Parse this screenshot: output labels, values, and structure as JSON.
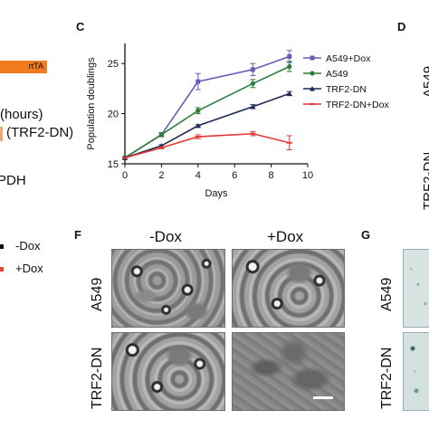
{
  "left_fragment": {
    "rtta_label": "rtTA",
    "hours_text": "(hours)",
    "trf2dn_text": "(TRF2-DN)",
    "gapdh_text": "PDH",
    "legend_dox_minus": "-Dox",
    "legend_dox_plus": "+Dox",
    "colors": {
      "rtta_box": "#f07a1e",
      "plus_dox_marker": "#e8462e"
    }
  },
  "panels": {
    "c": "C",
    "d": "D",
    "f": "F",
    "g": "G"
  },
  "panel_d_fragment": {
    "text": "A549",
    "text2": "TRF2-DN"
  },
  "panel_f": {
    "col_minus": "-Dox",
    "col_plus": "+Dox",
    "row_a549": "A549",
    "row_trf2dn": "TRF2-DN"
  },
  "panel_g": {
    "row_a549": "A549",
    "row_trf2dn": "TRF2-DN"
  },
  "chart_data": {
    "type": "line",
    "title": "",
    "xlabel": "Days",
    "ylabel": "Population doublings",
    "xlim": [
      0,
      10
    ],
    "ylim": [
      15,
      27
    ],
    "xticks": [
      0,
      2,
      4,
      6,
      8,
      10
    ],
    "yticks": [
      15,
      20,
      25
    ],
    "legend_position": "top-right",
    "series": [
      {
        "name": "A549+Dox",
        "color": "#6a5bb8",
        "marker": "square",
        "x": [
          0,
          2,
          4,
          7,
          9
        ],
        "y": [
          15.6,
          17.9,
          23.2,
          24.4,
          25.7
        ],
        "err": [
          0,
          0.2,
          0.8,
          0.6,
          0.6
        ]
      },
      {
        "name": "A549",
        "color": "#2e7d3a",
        "marker": "circle",
        "x": [
          0,
          2,
          4,
          7,
          9
        ],
        "y": [
          15.6,
          17.9,
          20.3,
          23.0,
          24.7
        ],
        "err": [
          0,
          0.2,
          0.3,
          0.4,
          0.5
        ]
      },
      {
        "name": "TRF2-DN",
        "color": "#1d2a55",
        "marker": "triangle",
        "x": [
          0,
          2,
          4,
          7,
          9
        ],
        "y": [
          15.6,
          16.8,
          18.8,
          20.7,
          22.0
        ],
        "err": [
          0,
          0.1,
          0.1,
          0.2,
          0.2
        ]
      },
      {
        "name": "TRF2-DN+Dox",
        "color": "#e53935",
        "marker": "dash",
        "x": [
          0,
          2,
          4,
          7,
          9
        ],
        "y": [
          15.6,
          16.6,
          17.7,
          18.0,
          17.1
        ],
        "err": [
          0,
          0.1,
          0.2,
          0.2,
          0.7
        ]
      }
    ]
  }
}
